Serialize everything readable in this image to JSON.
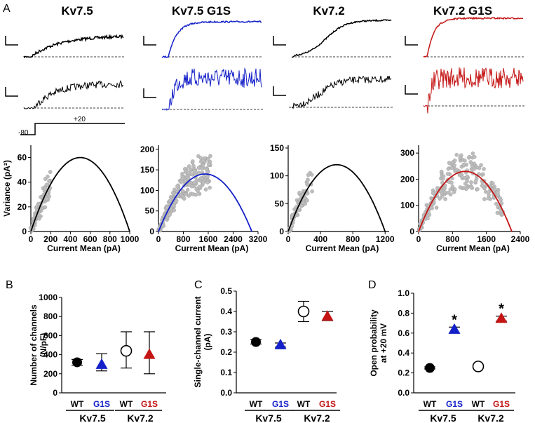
{
  "panel_labels": {
    "a": "A",
    "b": "B",
    "c": "C",
    "d": "D"
  },
  "colors": {
    "black": "#000000",
    "blue": "#1420c8",
    "red": "#c41414",
    "grey": "#bdbdbd"
  },
  "traces": {
    "titles": [
      {
        "text": "Kv7.5",
        "color": "#000000"
      },
      {
        "text": "Kv7.5 G1S",
        "color": "#1420c8"
      },
      {
        "text": "Kv7.2",
        "color": "#000000"
      },
      {
        "text": "Kv7.2 G1S",
        "color": "#c41414"
      }
    ],
    "protocol": {
      "holding": "-80",
      "step": "+20"
    }
  },
  "chart_data": [
    {
      "type": "scatter",
      "name": "variance-kv75",
      "title": "Kv7.5",
      "xlabel": "Current Mean (pA)",
      "ylabel": "Variance (pA²)",
      "xlim": [
        0,
        1000
      ],
      "ylim": [
        0,
        70
      ],
      "xticks": [
        0,
        200,
        400,
        600,
        800,
        1000
      ],
      "yticks": [
        0,
        20,
        40,
        60
      ],
      "fit": {
        "i": 0.0,
        "N": 1000,
        "peak": 60
      },
      "points_range": [
        0,
        200
      ],
      "color": "#000000"
    },
    {
      "type": "scatter",
      "name": "variance-kv75-g1s",
      "title": "Kv7.5 G1S",
      "xlabel": "Current Mean (pA)",
      "ylabel": "",
      "xlim": [
        0,
        3200
      ],
      "ylim": [
        0,
        210
      ],
      "xticks": [
        0,
        800,
        1600,
        2400,
        3200
      ],
      "yticks": [
        0,
        50,
        100,
        150,
        200
      ],
      "fit": {
        "N": 3000,
        "peak": 140
      },
      "points_range": [
        0,
        1700
      ],
      "color": "#1420c8"
    },
    {
      "type": "scatter",
      "name": "variance-kv72",
      "title": "Kv7.2",
      "xlabel": "Current Mean (pA)",
      "ylabel": "",
      "xlim": [
        0,
        1250
      ],
      "ylim": [
        0,
        155
      ],
      "xticks": [
        0,
        400,
        800,
        1200
      ],
      "yticks": [
        0,
        50,
        100,
        150
      ],
      "fit": {
        "N": 1200,
        "peak": 120
      },
      "points_range": [
        0,
        300
      ],
      "color": "#000000"
    },
    {
      "type": "scatter",
      "name": "variance-kv72-g1s",
      "title": "Kv7.2 G1S",
      "xlabel": "Current Mean (pA)",
      "ylabel": "",
      "xlim": [
        0,
        2400
      ],
      "ylim": [
        0,
        330
      ],
      "xticks": [
        0,
        800,
        1600,
        2400
      ],
      "yticks": [
        0,
        100,
        200,
        300
      ],
      "fit": {
        "N": 2200,
        "peak": 230
      },
      "points_range": [
        0,
        2000
      ],
      "color": "#c41414"
    },
    {
      "type": "scatter",
      "name": "channels",
      "panel": "B",
      "title": "",
      "xlabel": "",
      "ylabel": "Number of channels (N/pF)",
      "ylim": [
        0,
        1000
      ],
      "yticks": [
        0,
        200,
        400,
        600,
        800,
        1000
      ],
      "categories": [
        "WT",
        "G1S",
        "WT",
        "G1S"
      ],
      "groups": [
        "Kv7.5",
        "Kv7.2"
      ],
      "values": [
        320,
        295,
        440,
        400
      ],
      "err_low": [
        290,
        230,
        260,
        200
      ],
      "err_high": [
        350,
        410,
        640,
        640
      ],
      "markers": [
        "circle-filled",
        "triangle-blue",
        "circle-open",
        "triangle-red"
      ],
      "stars": [
        "",
        "",
        "",
        ""
      ]
    },
    {
      "type": "scatter",
      "name": "single-channel",
      "panel": "C",
      "title": "",
      "xlabel": "",
      "ylabel": "Single-channel current (pA)",
      "ylim": [
        0,
        0.5
      ],
      "yticks": [
        0,
        0.1,
        0.2,
        0.3,
        0.4,
        0.5
      ],
      "categories": [
        "WT",
        "G1S",
        "WT",
        "G1S"
      ],
      "groups": [
        "Kv7.5",
        "Kv7.2"
      ],
      "values": [
        0.25,
        0.235,
        0.4,
        0.375
      ],
      "err_low": [
        0.24,
        0.225,
        0.35,
        0.355
      ],
      "err_high": [
        0.262,
        0.245,
        0.45,
        0.4
      ],
      "markers": [
        "circle-filled",
        "triangle-blue",
        "circle-open",
        "triangle-red"
      ],
      "stars": [
        "",
        "",
        "",
        ""
      ]
    },
    {
      "type": "scatter",
      "name": "open-probability",
      "panel": "D",
      "title": "",
      "xlabel": "",
      "ylabel": "Open probability at +20 mV",
      "ylim": [
        0,
        1
      ],
      "yticks": [
        0,
        0.2,
        0.4,
        0.6,
        0.8,
        1
      ],
      "categories": [
        "WT",
        "G1S",
        "WT",
        "G1S"
      ],
      "groups": [
        "Kv7.5",
        "Kv7.2"
      ],
      "values": [
        0.25,
        0.635,
        0.265,
        0.745
      ],
      "err_low": [
        0.24,
        0.6,
        0.255,
        0.72
      ],
      "err_high": [
        0.26,
        0.66,
        0.275,
        0.77
      ],
      "markers": [
        "circle-filled",
        "triangle-blue",
        "circle-open",
        "triangle-red"
      ],
      "stars": [
        "",
        "*",
        "",
        "*"
      ]
    }
  ],
  "tick_fmt": {
    "y_decimals": [
      0,
      0,
      0,
      0,
      0,
      1,
      1
    ]
  },
  "y_label_lines": {
    "channels": [
      "Number of channels",
      "(N/pF)"
    ],
    "single-channel": [
      "Single-channel current",
      "(pA)"
    ],
    "open-probability": [
      "Open probability",
      "at +20 mV"
    ]
  }
}
